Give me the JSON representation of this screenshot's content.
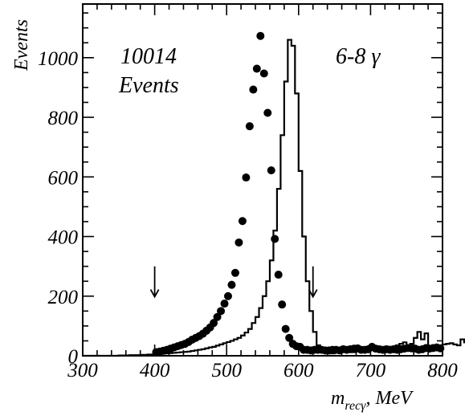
{
  "chart_data": {
    "type": "histogram+scatter",
    "ylabel": "Events",
    "xlabel_main": "m",
    "xlabel_sub": "recγ",
    "xlabel_unit": ", MeV",
    "xlim": [
      300,
      800
    ],
    "ylim": [
      0,
      1180
    ],
    "x_ticks": [
      300,
      400,
      500,
      600,
      700,
      800
    ],
    "y_ticks": [
      0,
      200,
      400,
      600,
      800,
      1000
    ],
    "annotation_left_line1": "10014",
    "annotation_left_line2": "Events",
    "annotation_right": "6-8 γ",
    "arrows_x": [
      400,
      620
    ],
    "bin_width": 5,
    "histogram": {
      "x_start": 300,
      "values": [
        0,
        0,
        0,
        0,
        0,
        0,
        0,
        0,
        0,
        0,
        1,
        1,
        1,
        2,
        2,
        2,
        3,
        3,
        4,
        4,
        5,
        6,
        7,
        8,
        9,
        10,
        11,
        12,
        13,
        14,
        16,
        18,
        20,
        22,
        25,
        28,
        30,
        34,
        38,
        42,
        46,
        50,
        55,
        60,
        68,
        78,
        90,
        110,
        130,
        160,
        200,
        250,
        320,
        420,
        560,
        740,
        920,
        1060,
        1040,
        880,
        620,
        400,
        250,
        150,
        80,
        35,
        15,
        10,
        8,
        8,
        12,
        14,
        15,
        14,
        13,
        12,
        15,
        16,
        14,
        18,
        20,
        22,
        20,
        25,
        28,
        30,
        25,
        35,
        40,
        45,
        35,
        40,
        60,
        80,
        55,
        75,
        30,
        25,
        20,
        35,
        38,
        40,
        42,
        38,
        35,
        55,
        45,
        35,
        20,
        30
      ]
    },
    "data_points": {
      "x": [
        402,
        407,
        412,
        417,
        422,
        427,
        432,
        437,
        442,
        447,
        452,
        457,
        462,
        467,
        472,
        477,
        482,
        487,
        492,
        497,
        502,
        507,
        512,
        517,
        522,
        527,
        532,
        537,
        542,
        547,
        552,
        557,
        562,
        567,
        572,
        577,
        582,
        587,
        592,
        597,
        602,
        607,
        612,
        617,
        622,
        627,
        632,
        637,
        642,
        647,
        652,
        657,
        662,
        667,
        672,
        677,
        682,
        687,
        692,
        697,
        702,
        707,
        712,
        717,
        722,
        727,
        732,
        737,
        742,
        747,
        752,
        757,
        762,
        767,
        772,
        777,
        782,
        787,
        792,
        797
      ],
      "y": [
        12,
        14,
        17,
        20,
        24,
        28,
        32,
        36,
        40,
        46,
        54,
        60,
        66,
        74,
        84,
        95,
        110,
        130,
        150,
        175,
        200,
        238,
        278,
        380,
        452,
        598,
        770,
        893,
        963,
        1073,
        947,
        815,
        622,
        392,
        272,
        172,
        90,
        60,
        40,
        32,
        30,
        20,
        20,
        18,
        20,
        20,
        20,
        18,
        18,
        20,
        20,
        18,
        22,
        20,
        22,
        24,
        25,
        20,
        20,
        22,
        30,
        24,
        22,
        20,
        22,
        20,
        22,
        20,
        22,
        24,
        26,
        25,
        24,
        20,
        22,
        26,
        24,
        26,
        28,
        25
      ]
    }
  }
}
